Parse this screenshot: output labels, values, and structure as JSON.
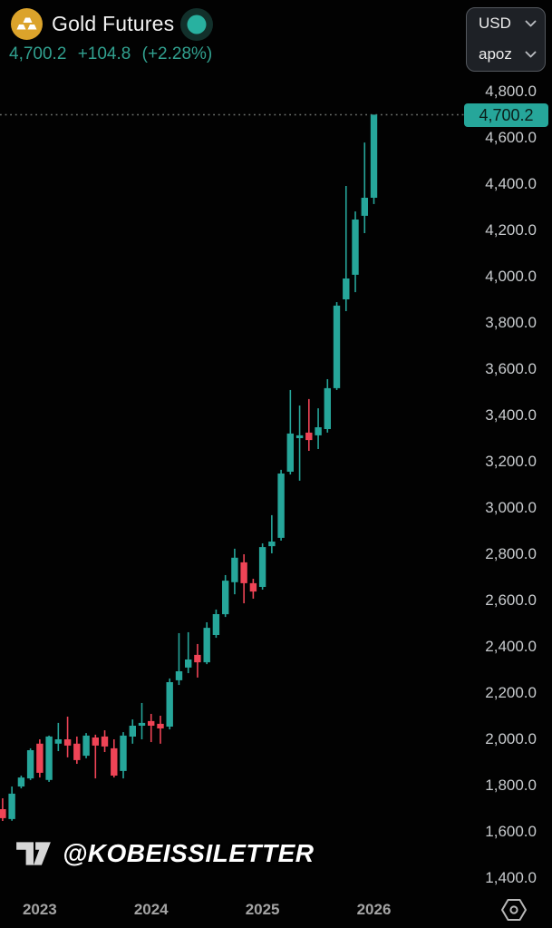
{
  "header": {
    "title": "Gold Futures",
    "price": "4,700.2",
    "change": "+104.8",
    "change_pct": "(+2.28%)"
  },
  "unit_selectors": {
    "currency": "USD",
    "unit": "apoz"
  },
  "price_scale": {
    "last_price_label": "4,700.2"
  },
  "watermark": {
    "handle": "@KOBEISSILETTER"
  },
  "icons": {
    "instrument": "gold-bars-icon",
    "status": "market-status-dot-icon",
    "currency_chevron": "chevron-down-icon",
    "unit_chevron": "chevron-down-icon",
    "brand": "tradingview-logo-icon",
    "settings": "instrument-settings-icon"
  },
  "colors": {
    "background": "#020202",
    "up": "#26a69a",
    "down": "#ef4456",
    "accent_text": "#31a08f",
    "badge_bg": "#26a69a",
    "badge_text": "#0b1d19",
    "axis_text": "#c8cbce",
    "year_text": "#a4a4a4",
    "gold_icon": "#dba32b",
    "dotted_line": "#6f726f"
  },
  "chart_data": {
    "type": "candlestick",
    "title": "Gold Futures",
    "interval": "monthly",
    "last_price": 4700.2,
    "change": 104.8,
    "change_percent": 2.28,
    "up_color": "#26a69a",
    "down_color": "#ef4456",
    "grid": false,
    "legend_position": "none",
    "last_price_line": {
      "price": 4700.2,
      "style": "dotted"
    },
    "y_axis": {
      "side": "right",
      "min": 1400,
      "max": 4800,
      "step": 200,
      "labels": [
        {
          "value": 4800,
          "label": "4,800.0"
        },
        {
          "value": 4600,
          "label": "4,600.0"
        },
        {
          "value": 4400,
          "label": "4,400.0"
        },
        {
          "value": 4200,
          "label": "4,200.0"
        },
        {
          "value": 4000,
          "label": "4,000.0"
        },
        {
          "value": 3800,
          "label": "3,800.0"
        },
        {
          "value": 3600,
          "label": "3,600.0"
        },
        {
          "value": 3400,
          "label": "3,400.0"
        },
        {
          "value": 3200,
          "label": "3,200.0"
        },
        {
          "value": 3000,
          "label": "3,000.0"
        },
        {
          "value": 2800,
          "label": "2,800.0"
        },
        {
          "value": 2600,
          "label": "2,600.0"
        },
        {
          "value": 2400,
          "label": "2,400.0"
        },
        {
          "value": 2200,
          "label": "2,200.0"
        },
        {
          "value": 2000,
          "label": "2,000.0"
        },
        {
          "value": 1800,
          "label": "1,800.0"
        },
        {
          "value": 1600,
          "label": "1,600.0"
        },
        {
          "value": 1400,
          "label": "1,400.0"
        }
      ]
    },
    "x_axis": {
      "labels": [
        {
          "label": "2023",
          "candle_index": 4
        },
        {
          "label": "2024",
          "candle_index": 16
        },
        {
          "label": "2025",
          "candle_index": 28
        },
        {
          "label": "2026",
          "candle_index": 40
        }
      ]
    },
    "ohlc_format": [
      "open",
      "high",
      "low",
      "close"
    ],
    "candles": [
      [
        1698,
        1745,
        1647,
        1659
      ],
      [
        1655,
        1796,
        1648,
        1765
      ],
      [
        1796,
        1843,
        1788,
        1835
      ],
      [
        1831,
        1961,
        1824,
        1953
      ],
      [
        1981,
        2000,
        1835,
        1855
      ],
      [
        1824,
        2016,
        1816,
        2012
      ],
      [
        1981,
        2071,
        1949,
        2000
      ],
      [
        2000,
        2098,
        1922,
        1973
      ],
      [
        1981,
        2012,
        1894,
        1910
      ],
      [
        1929,
        2027,
        1918,
        2016
      ],
      [
        2008,
        2020,
        1831,
        1973
      ],
      [
        2012,
        2039,
        1945,
        1969
      ],
      [
        1961,
        2000,
        1835,
        1843
      ],
      [
        1863,
        2031,
        1831,
        2016
      ],
      [
        2012,
        2086,
        1981,
        2059
      ],
      [
        2059,
        2157,
        2000,
        2071
      ],
      [
        2079,
        2110,
        1988,
        2059
      ],
      [
        2067,
        2102,
        1981,
        2047
      ],
      [
        2055,
        2263,
        2043,
        2247
      ],
      [
        2255,
        2459,
        2235,
        2294
      ],
      [
        2310,
        2463,
        2286,
        2345
      ],
      [
        2365,
        2412,
        2267,
        2333
      ],
      [
        2333,
        2506,
        2325,
        2482
      ],
      [
        2451,
        2561,
        2439,
        2541
      ],
      [
        2541,
        2710,
        2529,
        2686
      ],
      [
        2679,
        2824,
        2627,
        2785
      ],
      [
        2765,
        2800,
        2588,
        2675
      ],
      [
        2675,
        2694,
        2608,
        2639
      ],
      [
        2659,
        2847,
        2647,
        2831
      ],
      [
        2835,
        2969,
        2804,
        2855
      ],
      [
        2871,
        3165,
        2859,
        3149
      ],
      [
        3157,
        3510,
        3145,
        3322
      ],
      [
        3302,
        3443,
        3118,
        3314
      ],
      [
        3326,
        3471,
        3247,
        3294
      ],
      [
        3314,
        3431,
        3255,
        3349
      ],
      [
        3341,
        3557,
        3326,
        3518
      ],
      [
        3518,
        3890,
        3510,
        3875
      ],
      [
        3902,
        4392,
        3851,
        3992
      ],
      [
        4008,
        4282,
        3933,
        4247
      ],
      [
        4263,
        4580,
        4188,
        4341
      ],
      [
        4341,
        4700.2,
        4314,
        4700.2
      ]
    ]
  }
}
